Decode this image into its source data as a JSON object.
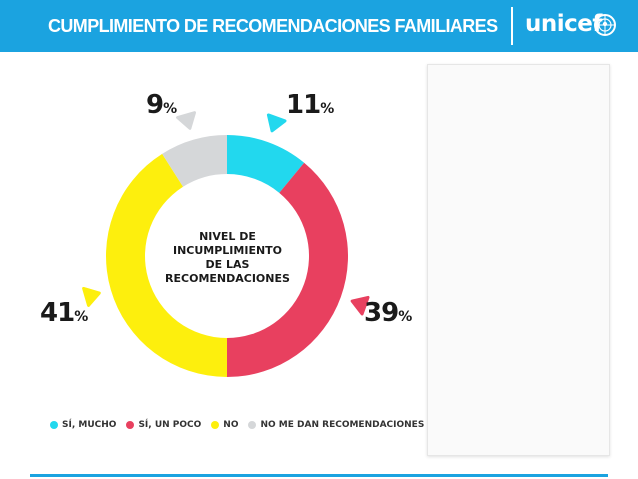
{
  "header": {
    "title": "CUMPLIMIENTO DE RECOMENDACIONES FAMILIARES",
    "logo_text": "unicef"
  },
  "chart_data": {
    "type": "pie",
    "donut": true,
    "center_label": [
      "NIVEL DE",
      "INCUMPLIMIENTO",
      "DE LAS",
      "RECOMENDACIONES"
    ],
    "categories": [
      "SÍ, MUCHO",
      "SÍ, UN POCO",
      "NO",
      "NO ME DAN RECOMENDACIONES"
    ],
    "values": [
      11,
      39,
      41,
      9
    ],
    "value_labels": [
      "11",
      "39",
      "41",
      "9"
    ],
    "unit": "%",
    "colors": [
      "#22d8ee",
      "#e8405f",
      "#fdef0d",
      "#d5d7d9"
    ],
    "legend_position": "bottom"
  },
  "colors": {
    "header_bg": "#1ba3e0",
    "text": "#1a1a1a"
  }
}
